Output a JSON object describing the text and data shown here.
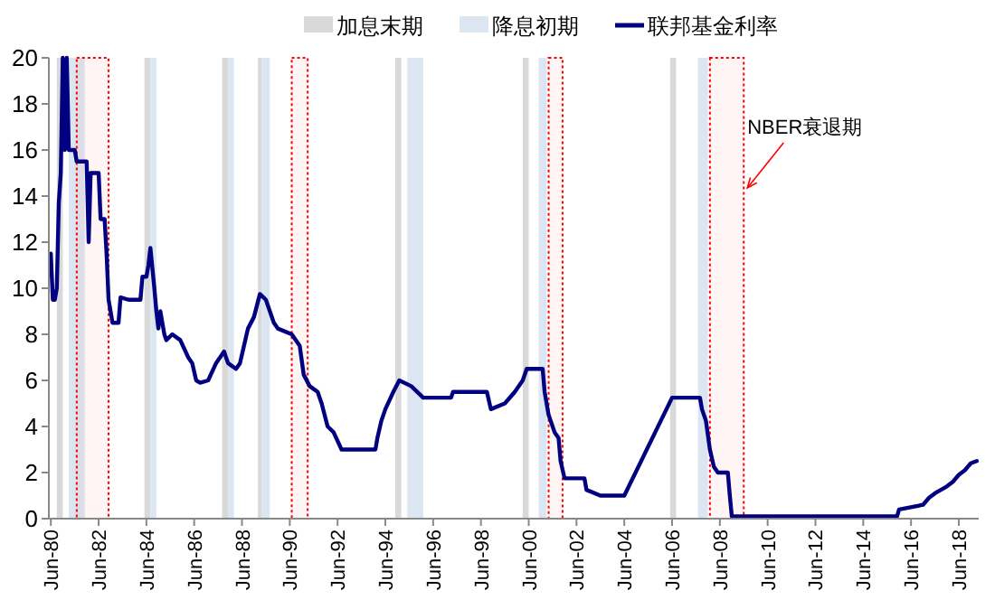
{
  "chart_data": {
    "type": "line",
    "legend": "top",
    "series": [
      {
        "name": "联邦基金利率",
        "color": "#000080",
        "x": [
          "1980-06",
          "1980-07",
          "1980-08",
          "1980-09",
          "1980-10",
          "1980-11",
          "1980-12",
          "1981-01",
          "1981-02",
          "1981-03",
          "1981-06",
          "1981-07",
          "1981-12",
          "1982-01",
          "1982-02",
          "1982-06",
          "1982-07",
          "1982-09",
          "1982-10",
          "1982-11",
          "1983-01",
          "1983-04",
          "1983-05",
          "1983-09",
          "1984-03",
          "1984-04",
          "1984-06",
          "1984-07",
          "1984-08",
          "1984-10",
          "1984-11",
          "1984-12",
          "1985-01",
          "1985-03",
          "1985-04",
          "1985-07",
          "1985-11",
          "1986-03",
          "1986-05",
          "1986-07",
          "1986-09",
          "1987-01",
          "1987-05",
          "1987-09",
          "1987-11",
          "1988-03",
          "1988-05",
          "1988-07",
          "1988-09",
          "1988-12",
          "1989-03",
          "1989-06",
          "1989-08",
          "1989-10",
          "1989-12",
          "1990-07",
          "1990-11",
          "1991-01",
          "1991-04",
          "1991-08",
          "1991-10",
          "1992-01",
          "1992-04",
          "1992-08",
          "1994-01",
          "1994-02",
          "1994-04",
          "1994-06",
          "1994-10",
          "1995-01",
          "1995-07",
          "1996-01",
          "1997-03",
          "1997-04",
          "1998-09",
          "1998-11",
          "1999-06",
          "1999-11",
          "2000-03",
          "2000-05",
          "2001-01",
          "2001-02",
          "2001-04",
          "2001-07",
          "2001-09",
          "2001-10",
          "2001-12",
          "2002-10",
          "2002-11",
          "2003-06",
          "2004-06",
          "2006-06",
          "2007-08",
          "2007-09",
          "2007-11",
          "2008-01",
          "2008-03",
          "2008-05",
          "2008-10",
          "2008-11",
          "2008-12",
          "2015-11",
          "2015-12",
          "2016-12",
          "2017-03",
          "2017-06",
          "2017-12",
          "2018-03",
          "2018-06",
          "2018-09",
          "2018-12",
          "2019-03"
        ],
        "values": [
          11.5,
          9.5,
          9.5,
          10,
          13.7,
          15,
          20,
          16,
          20,
          16,
          16,
          15.5,
          15.5,
          12,
          15,
          15,
          13,
          13,
          11.5,
          9.5,
          8.5,
          8.5,
          9.6,
          9.5,
          9.5,
          10.5,
          10.5,
          11,
          11.75,
          10,
          9,
          8.25,
          9,
          8,
          7.75,
          8,
          7.75,
          7,
          6.75,
          6,
          5.9,
          6,
          6.75,
          7.25,
          6.75,
          6.5,
          6.75,
          7.5,
          8.25,
          8.75,
          9.75,
          9.5,
          9,
          8.5,
          8.25,
          8,
          7.5,
          6.25,
          5.75,
          5.5,
          5,
          4,
          3.75,
          3,
          3,
          3.5,
          4.25,
          4.75,
          5.5,
          6,
          5.75,
          5.25,
          5.25,
          5.5,
          5.5,
          4.75,
          5,
          5.5,
          6,
          6.5,
          6.5,
          5.5,
          4.5,
          3.75,
          3.5,
          2.5,
          1.75,
          1.75,
          1.25,
          1,
          1,
          5.25,
          5.25,
          4.75,
          4.25,
          3,
          2.25,
          2,
          2,
          1,
          0.1,
          0.1,
          0.4,
          0.6,
          0.9,
          1.1,
          1.4,
          1.6,
          1.9,
          2.1,
          2.4,
          2.5
        ]
      }
    ],
    "bands": [
      {
        "axis": "x",
        "from": "1980-09",
        "to": "1980-12",
        "label": "加息末期",
        "color": "#d9d9d9"
      },
      {
        "axis": "x",
        "from": "1981-03",
        "to": "1981-11",
        "label": "降息初期",
        "color": "#dce6f2"
      },
      {
        "axis": "x",
        "from": "1984-05",
        "to": "1984-08",
        "color": "#d9d9d9"
      },
      {
        "axis": "x",
        "from": "1984-08",
        "to": "1984-11",
        "color": "#dce6f2"
      },
      {
        "axis": "x",
        "from": "1987-08",
        "to": "1987-11",
        "color": "#d9d9d9"
      },
      {
        "axis": "x",
        "from": "1987-11",
        "to": "1988-02",
        "color": "#dce6f2"
      },
      {
        "axis": "x",
        "from": "1989-02",
        "to": "1989-04",
        "color": "#d9d9d9"
      },
      {
        "axis": "x",
        "from": "1989-04",
        "to": "1989-08",
        "color": "#dce6f2"
      },
      {
        "axis": "x",
        "from": "1994-11",
        "to": "1995-02",
        "color": "#d9d9d9"
      },
      {
        "axis": "x",
        "from": "1995-05",
        "to": "1996-01",
        "color": "#dce6f2"
      },
      {
        "axis": "x",
        "from": "2000-03",
        "to": "2000-06",
        "color": "#d9d9d9"
      },
      {
        "axis": "x",
        "from": "2000-11",
        "to": "2001-03",
        "color": "#dce6f2"
      },
      {
        "axis": "x",
        "from": "2006-05",
        "to": "2006-08",
        "color": "#d9d9d9"
      },
      {
        "axis": "x",
        "from": "2007-07",
        "to": "2007-12",
        "color": "#dce6f2"
      },
      {
        "axis": "x",
        "from": "1981-07",
        "to": "1982-11",
        "color": "#ff0000"
      },
      {
        "axis": "x",
        "from": "1990-07",
        "to": "1991-03",
        "color": "#ff0000"
      },
      {
        "axis": "x",
        "from": "2001-04",
        "to": "2001-11",
        "color": "#ff0000"
      },
      {
        "axis": "x",
        "from": "2008-01",
        "to": "2009-06",
        "color": "#ff0000",
        "label": "NBER衰退期"
      }
    ],
    "xlim": [
      "1980-05",
      "2019-04"
    ],
    "xticks": [
      {
        "value": "1980-06",
        "label": "Jun-80"
      },
      {
        "value": "1982-06",
        "label": "Jun-82"
      },
      {
        "value": "1984-06",
        "label": "Jun-84"
      },
      {
        "value": "1986-06",
        "label": "Jun-86"
      },
      {
        "value": "1988-06",
        "label": "Jun-88"
      },
      {
        "value": "1990-06",
        "label": "Jun-90"
      },
      {
        "value": "1992-06",
        "label": "Jun-92"
      },
      {
        "value": "1994-06",
        "label": "Jun-94"
      },
      {
        "value": "1996-06",
        "label": "Jun-96"
      },
      {
        "value": "1998-06",
        "label": "Jun-98"
      },
      {
        "value": "2000-06",
        "label": "Jun-00"
      },
      {
        "value": "2002-06",
        "label": "Jun-02"
      },
      {
        "value": "2004-06",
        "label": "Jun-04"
      },
      {
        "value": "2006-06",
        "label": "Jun-06"
      },
      {
        "value": "2008-06",
        "label": "Jun-08"
      },
      {
        "value": "2010-06",
        "label": "Jun-10"
      },
      {
        "value": "2012-06",
        "label": "Jun-12"
      },
      {
        "value": "2014-06",
        "label": "Jun-14"
      },
      {
        "value": "2016-06",
        "label": "Jun-16"
      },
      {
        "value": "2018-06",
        "label": "Jun-18"
      }
    ],
    "ylim": [
      0,
      20
    ],
    "yticks": [
      0,
      2,
      4,
      6,
      8,
      10,
      12,
      14,
      16,
      18,
      20
    ],
    "grid": false
  }
}
